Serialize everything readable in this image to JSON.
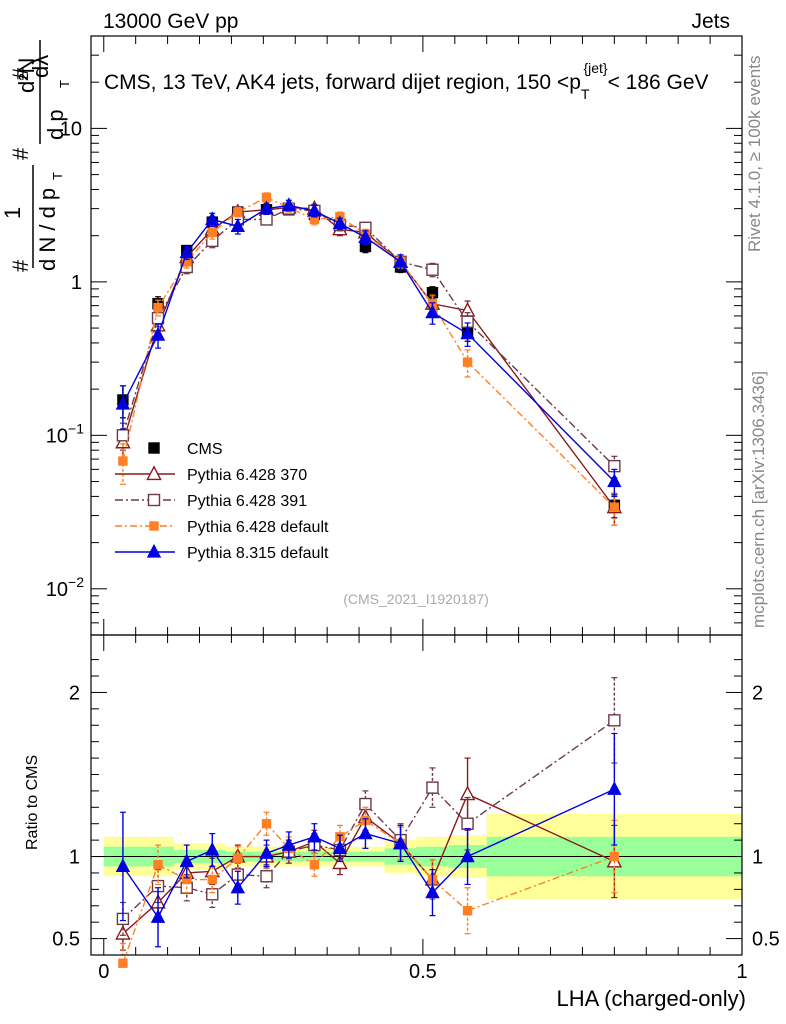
{
  "header": {
    "left": "13000 GeV pp",
    "right": "Jets"
  },
  "side_labels": {
    "rivet": "Rivet 4.1.0, ≥ 100k events",
    "mcplots": "mcplots.cern.ch [arXiv:1306.3436]"
  },
  "colors": {
    "cms": "#000000",
    "p370": "#8b1a1a",
    "p391": "#6b3a4a",
    "pdef": "#ff7f24",
    "p8": "#0000e0",
    "band_inner": "#99ff99",
    "band_outer": "#ffff99"
  },
  "chart_data": [
    {
      "type": "scatter",
      "name": "main",
      "title": "CMS, 13 TeV, AK4 jets, forward dijet region, 150 <p_T^{jet}< 186 GeV",
      "title_parts": {
        "pre": "CMS, 13 TeV, AK4 jets, forward dijet region, 150 <p",
        "sub": "T",
        "sup": "{jet}",
        "post": "< 186 GeV"
      },
      "ylabel": "1/(dN/dp_T) d²N/(dp_T dλ)",
      "ylabel_parts": {
        "hash": "#",
        "one": "1",
        "den": "d N / d p",
        "numA": "d²N",
        "numB": "d p",
        "lam": "dλ",
        "T": "T"
      },
      "yscale": "log",
      "ylim": [
        0.005,
        40
      ],
      "xlim": [
        -0.02,
        1.0
      ],
      "yticks": [
        {
          "v": 0.01,
          "label": "10",
          "exp": "−2"
        },
        {
          "v": 0.1,
          "label": "10",
          "exp": "−1"
        },
        {
          "v": 1,
          "label": "1",
          "exp": ""
        },
        {
          "v": 10,
          "label": "10",
          "exp": ""
        }
      ],
      "watermark": "(CMS_2021_I1920187)",
      "x": [
        0.03,
        0.085,
        0.13,
        0.17,
        0.21,
        0.255,
        0.29,
        0.33,
        0.37,
        0.41,
        0.465,
        0.515,
        0.57,
        0.8
      ],
      "series": [
        {
          "name": "CMS",
          "key": "cms",
          "values": [
            0.17,
            0.72,
            1.6,
            2.45,
            2.85,
            2.95,
            2.95,
            2.75,
            2.3,
            1.7,
            1.25,
            0.85,
            0.47,
            0.035
          ],
          "err": [
            0.04,
            0.08,
            0.12,
            0.2,
            0.2,
            0.2,
            0.2,
            0.2,
            0.2,
            0.15,
            0.1,
            0.08,
            0.06,
            0.006
          ]
        },
        {
          "name": "Pythia 6.428 370",
          "key": "p370",
          "values": [
            0.09,
            0.52,
            1.45,
            2.2,
            2.85,
            2.95,
            3.05,
            3.0,
            2.2,
            2.1,
            1.35,
            0.72,
            0.65,
            0.034
          ],
          "err": [
            0.02,
            0.07,
            0.12,
            0.2,
            0.2,
            0.2,
            0.2,
            0.2,
            0.2,
            0.15,
            0.12,
            0.08,
            0.1,
            0.008
          ]
        },
        {
          "name": "Pythia 6.428 391",
          "key": "p391",
          "values": [
            0.1,
            0.58,
            1.25,
            1.85,
            2.55,
            2.55,
            3.0,
            2.9,
            2.35,
            2.25,
            1.35,
            1.2,
            0.55,
            0.063
          ],
          "err": [
            0.02,
            0.07,
            0.12,
            0.18,
            0.2,
            0.2,
            0.2,
            0.2,
            0.2,
            0.15,
            0.12,
            0.12,
            0.08,
            0.01
          ]
        },
        {
          "name": "Pythia 6.428 default",
          "key": "pdef",
          "values": [
            0.068,
            0.68,
            1.35,
            2.1,
            2.85,
            3.55,
            3.05,
            2.55,
            2.65,
            2.05,
            1.35,
            0.72,
            0.3,
            0.034
          ],
          "err": [
            0.02,
            0.08,
            0.12,
            0.2,
            0.2,
            0.25,
            0.2,
            0.2,
            0.2,
            0.15,
            0.12,
            0.1,
            0.06,
            0.008
          ]
        },
        {
          "name": "Pythia 8.315 default",
          "key": "p8",
          "values": [
            0.16,
            0.45,
            1.55,
            2.55,
            2.3,
            3.0,
            3.15,
            2.9,
            2.4,
            1.95,
            1.35,
            0.63,
            0.46,
            0.05
          ],
          "err": [
            0.05,
            0.08,
            0.15,
            0.25,
            0.25,
            0.25,
            0.25,
            0.25,
            0.2,
            0.2,
            0.15,
            0.1,
            0.08,
            0.01
          ]
        }
      ],
      "legend": {
        "placement": "lower-left",
        "entries": [
          "CMS",
          "Pythia 6.428 370",
          "Pythia 6.428 391",
          "Pythia 6.428 default",
          "Pythia 8.315 default"
        ]
      }
    },
    {
      "type": "scatter",
      "name": "ratio",
      "ylabel": "Ratio to CMS",
      "xlabel": "LHA (charged-only)",
      "ylim": [
        0.4,
        2.35
      ],
      "xlim": [
        -0.02,
        1.0
      ],
      "yticks": [
        {
          "v": 0.5,
          "label": "0.5"
        },
        {
          "v": 1,
          "label": "1"
        },
        {
          "v": 2,
          "label": "2"
        }
      ],
      "xticks": [
        {
          "v": 0,
          "label": "0"
        },
        {
          "v": 0.5,
          "label": "0.5"
        },
        {
          "v": 1,
          "label": "1"
        }
      ],
      "bands": [
        {
          "x0": 0.0,
          "x1": 0.11,
          "inner": [
            0.94,
            1.06
          ],
          "outer": [
            0.88,
            1.12
          ]
        },
        {
          "x0": 0.11,
          "x1": 0.19,
          "inner": [
            0.96,
            1.04
          ],
          "outer": [
            0.92,
            1.08
          ]
        },
        {
          "x0": 0.19,
          "x1": 0.44,
          "inner": [
            0.97,
            1.03
          ],
          "outer": [
            0.94,
            1.06
          ]
        },
        {
          "x0": 0.44,
          "x1": 0.49,
          "inner": [
            0.95,
            1.05
          ],
          "outer": [
            0.9,
            1.1
          ]
        },
        {
          "x0": 0.49,
          "x1": 0.54,
          "inner": [
            0.94,
            1.06
          ],
          "outer": [
            0.88,
            1.12
          ]
        },
        {
          "x0": 0.54,
          "x1": 0.6,
          "inner": [
            0.93,
            1.07
          ],
          "outer": [
            0.87,
            1.13
          ]
        },
        {
          "x0": 0.6,
          "x1": 1.0,
          "inner": [
            0.88,
            1.12
          ],
          "outer": [
            0.74,
            1.26
          ]
        }
      ],
      "x": [
        0.03,
        0.085,
        0.13,
        0.17,
        0.21,
        0.255,
        0.29,
        0.33,
        0.37,
        0.41,
        0.465,
        0.515,
        0.57,
        0.8
      ],
      "series": [
        {
          "name": "Pythia 6.428 370",
          "key": "p370",
          "values": [
            0.53,
            0.72,
            0.9,
            0.91,
            1.0,
            1.0,
            1.03,
            1.09,
            0.96,
            1.24,
            1.08,
            0.86,
            1.38,
            0.97
          ],
          "err": [
            0.1,
            0.1,
            0.08,
            0.08,
            0.07,
            0.07,
            0.07,
            0.07,
            0.07,
            0.08,
            0.1,
            0.12,
            0.22,
            0.22
          ]
        },
        {
          "name": "Pythia 6.428 391",
          "key": "p391",
          "values": [
            0.62,
            0.82,
            0.81,
            0.77,
            0.89,
            0.88,
            1.03,
            1.07,
            1.04,
            1.32,
            1.1,
            1.42,
            1.2,
            1.83
          ],
          "err": [
            0.1,
            0.1,
            0.08,
            0.08,
            0.07,
            0.07,
            0.07,
            0.07,
            0.07,
            0.08,
            0.1,
            0.12,
            0.16,
            0.26
          ]
        },
        {
          "name": "Pythia 6.428 default",
          "key": "pdef",
          "values": [
            0.35,
            0.95,
            0.86,
            0.86,
            0.99,
            1.2,
            1.05,
            0.95,
            1.12,
            1.22,
            1.08,
            0.86,
            0.67,
            1.0
          ],
          "err": [
            0.12,
            0.12,
            0.08,
            0.08,
            0.07,
            0.07,
            0.07,
            0.07,
            0.07,
            0.08,
            0.1,
            0.12,
            0.14,
            0.22
          ]
        },
        {
          "name": "Pythia 8.315 default",
          "key": "p8",
          "values": [
            0.94,
            0.63,
            0.97,
            1.04,
            0.81,
            1.02,
            1.07,
            1.12,
            1.05,
            1.14,
            1.08,
            0.78,
            1.0,
            1.41
          ],
          "err": [
            0.33,
            0.18,
            0.1,
            0.1,
            0.1,
            0.08,
            0.08,
            0.08,
            0.08,
            0.09,
            0.11,
            0.14,
            0.17,
            0.34
          ]
        }
      ]
    }
  ]
}
